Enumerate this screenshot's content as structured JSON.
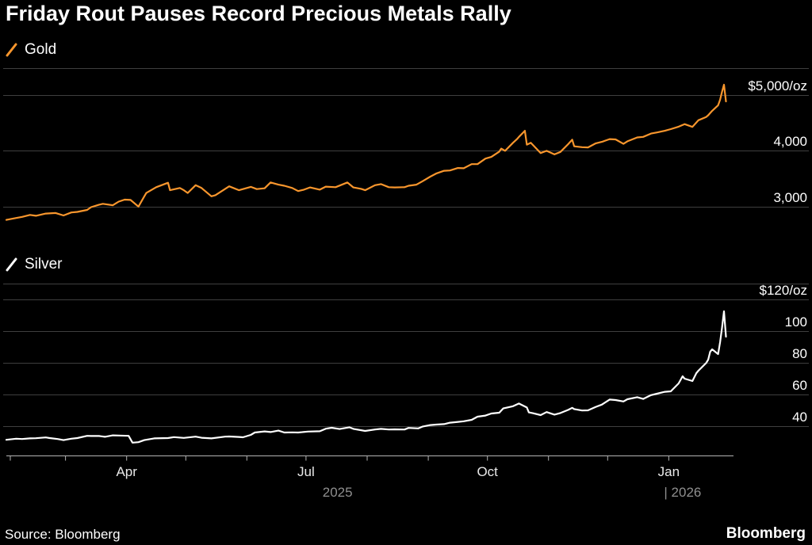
{
  "title": "Friday Rout Pauses Record Precious Metals Rally",
  "source": "Source: Bloomberg",
  "brand": "Bloomberg",
  "colors": {
    "background": "#000000",
    "gold_line": "#f8962d",
    "silver_line": "#ffffff",
    "gridline": "#3f3f3f",
    "axis": "#b3b3b3",
    "month_label": "#e9e9e9",
    "year_label": "#8f8f8f"
  },
  "chart_data": [
    {
      "type": "line",
      "name": "Gold",
      "color": "#f8962d",
      "ylim": [
        2650,
        5460
      ],
      "yticks": [
        {
          "value": 3000,
          "label": "3,000"
        },
        {
          "value": 4000,
          "label": "4,000"
        },
        {
          "value": 5000,
          "label": "$5,000/oz"
        }
      ],
      "points": [
        [
          "2025-01-30",
          2755
        ],
        [
          "2025-02-04",
          2790
        ],
        [
          "2025-02-07",
          2810
        ],
        [
          "2025-02-11",
          2845
        ],
        [
          "2025-02-14",
          2830
        ],
        [
          "2025-02-19",
          2870
        ],
        [
          "2025-02-24",
          2880
        ],
        [
          "2025-02-28",
          2835
        ],
        [
          "2025-03-04",
          2890
        ],
        [
          "2025-03-07",
          2900
        ],
        [
          "2025-03-12",
          2935
        ],
        [
          "2025-03-14",
          2985
        ],
        [
          "2025-03-18",
          3030
        ],
        [
          "2025-03-20",
          3045
        ],
        [
          "2025-03-25",
          3020
        ],
        [
          "2025-03-28",
          3085
        ],
        [
          "2025-03-31",
          3120
        ],
        [
          "2025-04-03",
          3115
        ],
        [
          "2025-04-07",
          2995
        ],
        [
          "2025-04-10",
          3180
        ],
        [
          "2025-04-11",
          3240
        ],
        [
          "2025-04-16",
          3345
        ],
        [
          "2025-04-22",
          3425
        ],
        [
          "2025-04-23",
          3290
        ],
        [
          "2025-04-28",
          3330
        ],
        [
          "2025-04-30",
          3290
        ],
        [
          "2025-05-02",
          3240
        ],
        [
          "2025-05-06",
          3380
        ],
        [
          "2025-05-09",
          3330
        ],
        [
          "2025-05-14",
          3180
        ],
        [
          "2025-05-16",
          3200
        ],
        [
          "2025-05-21",
          3315
        ],
        [
          "2025-05-23",
          3360
        ],
        [
          "2025-05-28",
          3290
        ],
        [
          "2025-06-03",
          3350
        ],
        [
          "2025-06-06",
          3310
        ],
        [
          "2025-06-10",
          3325
        ],
        [
          "2025-06-13",
          3430
        ],
        [
          "2025-06-17",
          3390
        ],
        [
          "2025-06-20",
          3370
        ],
        [
          "2025-06-24",
          3330
        ],
        [
          "2025-06-27",
          3275
        ],
        [
          "2025-06-30",
          3300
        ],
        [
          "2025-07-03",
          3340
        ],
        [
          "2025-07-08",
          3300
        ],
        [
          "2025-07-11",
          3355
        ],
        [
          "2025-07-16",
          3345
        ],
        [
          "2025-07-22",
          3430
        ],
        [
          "2025-07-25",
          3340
        ],
        [
          "2025-07-29",
          3315
        ],
        [
          "2025-07-31",
          3290
        ],
        [
          "2025-08-05",
          3380
        ],
        [
          "2025-08-08",
          3400
        ],
        [
          "2025-08-12",
          3345
        ],
        [
          "2025-08-15",
          3340
        ],
        [
          "2025-08-20",
          3345
        ],
        [
          "2025-08-22",
          3370
        ],
        [
          "2025-08-26",
          3390
        ],
        [
          "2025-08-29",
          3450
        ],
        [
          "2025-09-02",
          3535
        ],
        [
          "2025-09-05",
          3590
        ],
        [
          "2025-09-09",
          3640
        ],
        [
          "2025-09-12",
          3645
        ],
        [
          "2025-09-16",
          3690
        ],
        [
          "2025-09-19",
          3685
        ],
        [
          "2025-09-23",
          3760
        ],
        [
          "2025-09-26",
          3760
        ],
        [
          "2025-09-30",
          3860
        ],
        [
          "2025-10-03",
          3890
        ],
        [
          "2025-10-07",
          3985
        ],
        [
          "2025-10-08",
          4040
        ],
        [
          "2025-10-10",
          4000
        ],
        [
          "2025-10-14",
          4145
        ],
        [
          "2025-10-16",
          4210
        ],
        [
          "2025-10-17",
          4250
        ],
        [
          "2025-10-20",
          4360
        ],
        [
          "2025-10-21",
          4110
        ],
        [
          "2025-10-23",
          4145
        ],
        [
          "2025-10-28",
          3960
        ],
        [
          "2025-10-31",
          4000
        ],
        [
          "2025-11-04",
          3935
        ],
        [
          "2025-11-07",
          3980
        ],
        [
          "2025-11-11",
          4120
        ],
        [
          "2025-11-13",
          4200
        ],
        [
          "2025-11-14",
          4080
        ],
        [
          "2025-11-18",
          4065
        ],
        [
          "2025-11-21",
          4060
        ],
        [
          "2025-11-25",
          4135
        ],
        [
          "2025-11-28",
          4160
        ],
        [
          "2025-12-02",
          4210
        ],
        [
          "2025-12-05",
          4205
        ],
        [
          "2025-12-09",
          4125
        ],
        [
          "2025-12-11",
          4170
        ],
        [
          "2025-12-16",
          4240
        ],
        [
          "2025-12-19",
          4250
        ],
        [
          "2025-12-23",
          4310
        ],
        [
          "2025-12-26",
          4330
        ],
        [
          "2025-12-30",
          4360
        ],
        [
          "2026-01-02",
          4390
        ],
        [
          "2026-01-06",
          4435
        ],
        [
          "2026-01-09",
          4480
        ],
        [
          "2026-01-13",
          4430
        ],
        [
          "2026-01-15",
          4510
        ],
        [
          "2026-01-16",
          4550
        ],
        [
          "2026-01-20",
          4610
        ],
        [
          "2026-01-21",
          4640
        ],
        [
          "2026-01-23",
          4720
        ],
        [
          "2026-01-26",
          4820
        ],
        [
          "2026-01-27",
          4920
        ],
        [
          "2026-01-28",
          5060
        ],
        [
          "2026-01-29",
          5190
        ],
        [
          "2026-01-30",
          4890
        ]
      ]
    },
    {
      "type": "line",
      "name": "Silver",
      "color": "#ffffff",
      "ylim": [
        23,
        129
      ],
      "yticks": [
        {
          "value": 40,
          "label": "40"
        },
        {
          "value": 60,
          "label": "60"
        },
        {
          "value": 80,
          "label": "80"
        },
        {
          "value": 100,
          "label": "100"
        },
        {
          "value": 120,
          "label": "$120/oz"
        }
      ],
      "points": [
        [
          "2025-01-30",
          31.4
        ],
        [
          "2025-02-04",
          32.1
        ],
        [
          "2025-02-07",
          31.9
        ],
        [
          "2025-02-11",
          32.3
        ],
        [
          "2025-02-14",
          32.4
        ],
        [
          "2025-02-19",
          32.9
        ],
        [
          "2025-02-21",
          32.5
        ],
        [
          "2025-02-25",
          31.9
        ],
        [
          "2025-02-28",
          31.2
        ],
        [
          "2025-03-04",
          32.1
        ],
        [
          "2025-03-07",
          32.5
        ],
        [
          "2025-03-12",
          33.9
        ],
        [
          "2025-03-14",
          33.8
        ],
        [
          "2025-03-18",
          33.8
        ],
        [
          "2025-03-21",
          33.3
        ],
        [
          "2025-03-25",
          34.2
        ],
        [
          "2025-03-28",
          34.1
        ],
        [
          "2025-04-02",
          33.9
        ],
        [
          "2025-04-04",
          29.6
        ],
        [
          "2025-04-07",
          29.9
        ],
        [
          "2025-04-10",
          31.2
        ],
        [
          "2025-04-15",
          32.3
        ],
        [
          "2025-04-22",
          32.5
        ],
        [
          "2025-04-25",
          33.1
        ],
        [
          "2025-04-30",
          32.6
        ],
        [
          "2025-05-06",
          33.4
        ],
        [
          "2025-05-09",
          32.7
        ],
        [
          "2025-05-14",
          32.3
        ],
        [
          "2025-05-21",
          33.4
        ],
        [
          "2025-05-23",
          33.5
        ],
        [
          "2025-05-28",
          33.2
        ],
        [
          "2025-05-30",
          33.0
        ],
        [
          "2025-06-03",
          34.5
        ],
        [
          "2025-06-05",
          36.0
        ],
        [
          "2025-06-10",
          36.7
        ],
        [
          "2025-06-13",
          36.3
        ],
        [
          "2025-06-17",
          37.2
        ],
        [
          "2025-06-20",
          36.0
        ],
        [
          "2025-06-24",
          36.1
        ],
        [
          "2025-06-27",
          36.0
        ],
        [
          "2025-07-02",
          36.6
        ],
        [
          "2025-07-08",
          36.8
        ],
        [
          "2025-07-11",
          38.4
        ],
        [
          "2025-07-14",
          39.0
        ],
        [
          "2025-07-18",
          38.2
        ],
        [
          "2025-07-23",
          39.3
        ],
        [
          "2025-07-25",
          38.3
        ],
        [
          "2025-07-31",
          37.0
        ],
        [
          "2025-08-05",
          37.9
        ],
        [
          "2025-08-08",
          38.3
        ],
        [
          "2025-08-12",
          37.9
        ],
        [
          "2025-08-15",
          38.0
        ],
        [
          "2025-08-20",
          37.9
        ],
        [
          "2025-08-22",
          38.9
        ],
        [
          "2025-08-27",
          38.6
        ],
        [
          "2025-08-29",
          39.7
        ],
        [
          "2025-09-02",
          40.7
        ],
        [
          "2025-09-05",
          41.0
        ],
        [
          "2025-09-09",
          41.3
        ],
        [
          "2025-09-12",
          42.2
        ],
        [
          "2025-09-16",
          42.7
        ],
        [
          "2025-09-19",
          43.1
        ],
        [
          "2025-09-23",
          44.0
        ],
        [
          "2025-09-26",
          46.0
        ],
        [
          "2025-09-30",
          46.7
        ],
        [
          "2025-10-03",
          48.0
        ],
        [
          "2025-10-07",
          48.5
        ],
        [
          "2025-10-09",
          51.2
        ],
        [
          "2025-10-14",
          52.6
        ],
        [
          "2025-10-17",
          54.3
        ],
        [
          "2025-10-21",
          51.8
        ],
        [
          "2025-10-22",
          48.7
        ],
        [
          "2025-10-24",
          48.2
        ],
        [
          "2025-10-28",
          47.0
        ],
        [
          "2025-10-31",
          48.9
        ],
        [
          "2025-11-04",
          47.3
        ],
        [
          "2025-11-07",
          48.3
        ],
        [
          "2025-11-11",
          50.3
        ],
        [
          "2025-11-13",
          51.6
        ],
        [
          "2025-11-14",
          50.8
        ],
        [
          "2025-11-18",
          49.9
        ],
        [
          "2025-11-21",
          50.0
        ],
        [
          "2025-11-25",
          52.2
        ],
        [
          "2025-11-28",
          53.6
        ],
        [
          "2025-12-02",
          56.8
        ],
        [
          "2025-12-05",
          56.5
        ],
        [
          "2025-12-09",
          55.6
        ],
        [
          "2025-12-11",
          57.0
        ],
        [
          "2025-12-16",
          58.3
        ],
        [
          "2025-12-19",
          57.2
        ],
        [
          "2025-12-23",
          59.6
        ],
        [
          "2025-12-26",
          60.5
        ],
        [
          "2025-12-30",
          61.7
        ],
        [
          "2026-01-02",
          62.0
        ],
        [
          "2026-01-06",
          67.0
        ],
        [
          "2026-01-08",
          71.5
        ],
        [
          "2026-01-09",
          70.0
        ],
        [
          "2026-01-13",
          68.5
        ],
        [
          "2026-01-15",
          73.5
        ],
        [
          "2026-01-16",
          75.0
        ],
        [
          "2026-01-20",
          80.0
        ],
        [
          "2026-01-21",
          82.0
        ],
        [
          "2026-01-22",
          87.0
        ],
        [
          "2026-01-23",
          88.5
        ],
        [
          "2026-01-26",
          85.5
        ],
        [
          "2026-01-27",
          93.0
        ],
        [
          "2026-01-28",
          102.0
        ],
        [
          "2026-01-29",
          112.5
        ],
        [
          "2026-01-30",
          96.5
        ]
      ]
    }
  ],
  "xaxis": {
    "x_start": "2025-01-30",
    "x_end": "2026-01-31",
    "month_ticks": [
      "2025-02-01",
      "2025-03-01",
      "2025-04-01",
      "2025-05-01",
      "2025-06-01",
      "2025-07-01",
      "2025-08-01",
      "2025-09-01",
      "2025-10-01",
      "2025-11-01",
      "2025-12-01",
      "2026-01-01"
    ],
    "month_labels": [
      {
        "text": "Apr",
        "date": "2025-04-01"
      },
      {
        "text": "Jul",
        "date": "2025-07-01"
      },
      {
        "text": "Oct",
        "date": "2025-10-01"
      },
      {
        "text": "Jan",
        "date": "2026-01-01"
      }
    ],
    "year_labels": [
      {
        "text": "2025"
      },
      {
        "text": "| 2026",
        "date": "2026-01-01"
      }
    ]
  }
}
